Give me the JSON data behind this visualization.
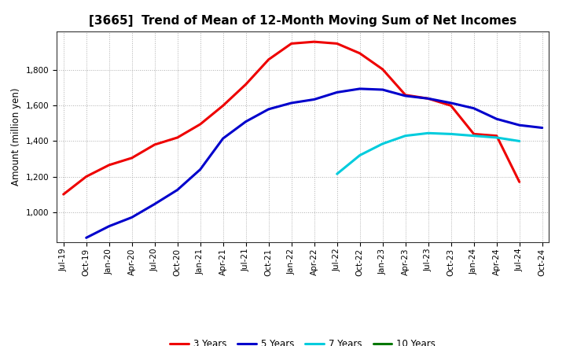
{
  "title": "[3665]  Trend of Mean of 12-Month Moving Sum of Net Incomes",
  "ylabel": "Amount (million yen)",
  "ylim": [
    830,
    2020
  ],
  "yticks": [
    1000,
    1200,
    1400,
    1600,
    1800
  ],
  "background_color": "#ffffff",
  "grid_color": "#999999",
  "series": {
    "3 Years": {
      "color": "#ee0000",
      "y_values": [
        1100,
        1200,
        1265,
        1305,
        1380,
        1420,
        1495,
        1600,
        1720,
        1860,
        1950,
        1960,
        1950,
        1895,
        1805,
        1660,
        1640,
        1600,
        1440,
        1430,
        1170,
        null
      ]
    },
    "5 Years": {
      "color": "#0000cc",
      "y_values": [
        null,
        855,
        920,
        970,
        1045,
        1125,
        1240,
        1415,
        1510,
        1580,
        1615,
        1635,
        1675,
        1695,
        1690,
        1655,
        1640,
        1615,
        1585,
        1525,
        1490,
        1475
      ]
    },
    "7 Years": {
      "color": "#00ccdd",
      "y_values": [
        null,
        null,
        null,
        null,
        null,
        null,
        null,
        null,
        null,
        null,
        null,
        null,
        1215,
        1320,
        1385,
        1430,
        1445,
        1440,
        1430,
        1420,
        1400,
        null
      ]
    },
    "10 Years": {
      "color": "#007700",
      "y_values": [
        null,
        null,
        null,
        null,
        null,
        null,
        null,
        null,
        null,
        null,
        null,
        null,
        null,
        null,
        null,
        null,
        null,
        null,
        null,
        null,
        null,
        null
      ]
    }
  },
  "x_labels": [
    "Jul-19",
    "Oct-19",
    "Jan-20",
    "Apr-20",
    "Jul-20",
    "Oct-20",
    "Jan-21",
    "Apr-21",
    "Jul-21",
    "Oct-21",
    "Jan-22",
    "Apr-22",
    "Jul-22",
    "Oct-22",
    "Jan-23",
    "Apr-23",
    "Jul-23",
    "Oct-23",
    "Jan-24",
    "Apr-24",
    "Jul-24",
    "Oct-24"
  ],
  "line_width": 2.2,
  "title_fontsize": 11,
  "axis_label_fontsize": 8.5,
  "tick_fontsize": 7.5,
  "legend_fontsize": 8.5
}
